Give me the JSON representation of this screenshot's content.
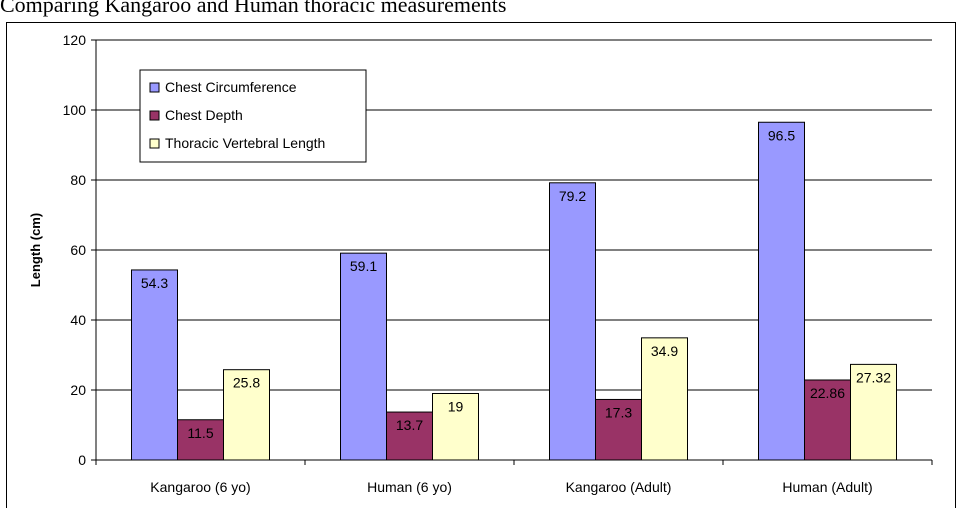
{
  "header": {
    "text": "Comparing Kangaroo and Human thoracic measurements"
  },
  "chart_data": {
    "type": "bar",
    "categories": [
      "Kangaroo (6 yo)",
      "Human (6 yo)",
      "Kangaroo (Adult)",
      "Human (Adult)"
    ],
    "series": [
      {
        "name": "Chest Circumference",
        "values": [
          54.3,
          59.1,
          79.2,
          96.5
        ],
        "labels": [
          "54.3",
          "59.1",
          "79.2",
          "96.5"
        ],
        "color": "#9999ff"
      },
      {
        "name": "Chest Depth",
        "values": [
          11.5,
          13.7,
          17.3,
          22.86
        ],
        "labels": [
          "11.5",
          "13.7",
          "17.3",
          "22.86"
        ],
        "color": "#993366"
      },
      {
        "name": "Thoracic Vertebral Length",
        "values": [
          25.8,
          19,
          34.9,
          27.32
        ],
        "labels": [
          "25.8",
          "19",
          "34.9",
          "27.32"
        ],
        "color": "#ffffcc"
      }
    ],
    "title": "",
    "xlabel": "",
    "ylabel": "Length (cm)",
    "ylim": [
      0,
      120
    ],
    "yticks": [
      0,
      20,
      40,
      60,
      80,
      100,
      120
    ],
    "grid": true,
    "legend_position": "top-left"
  }
}
